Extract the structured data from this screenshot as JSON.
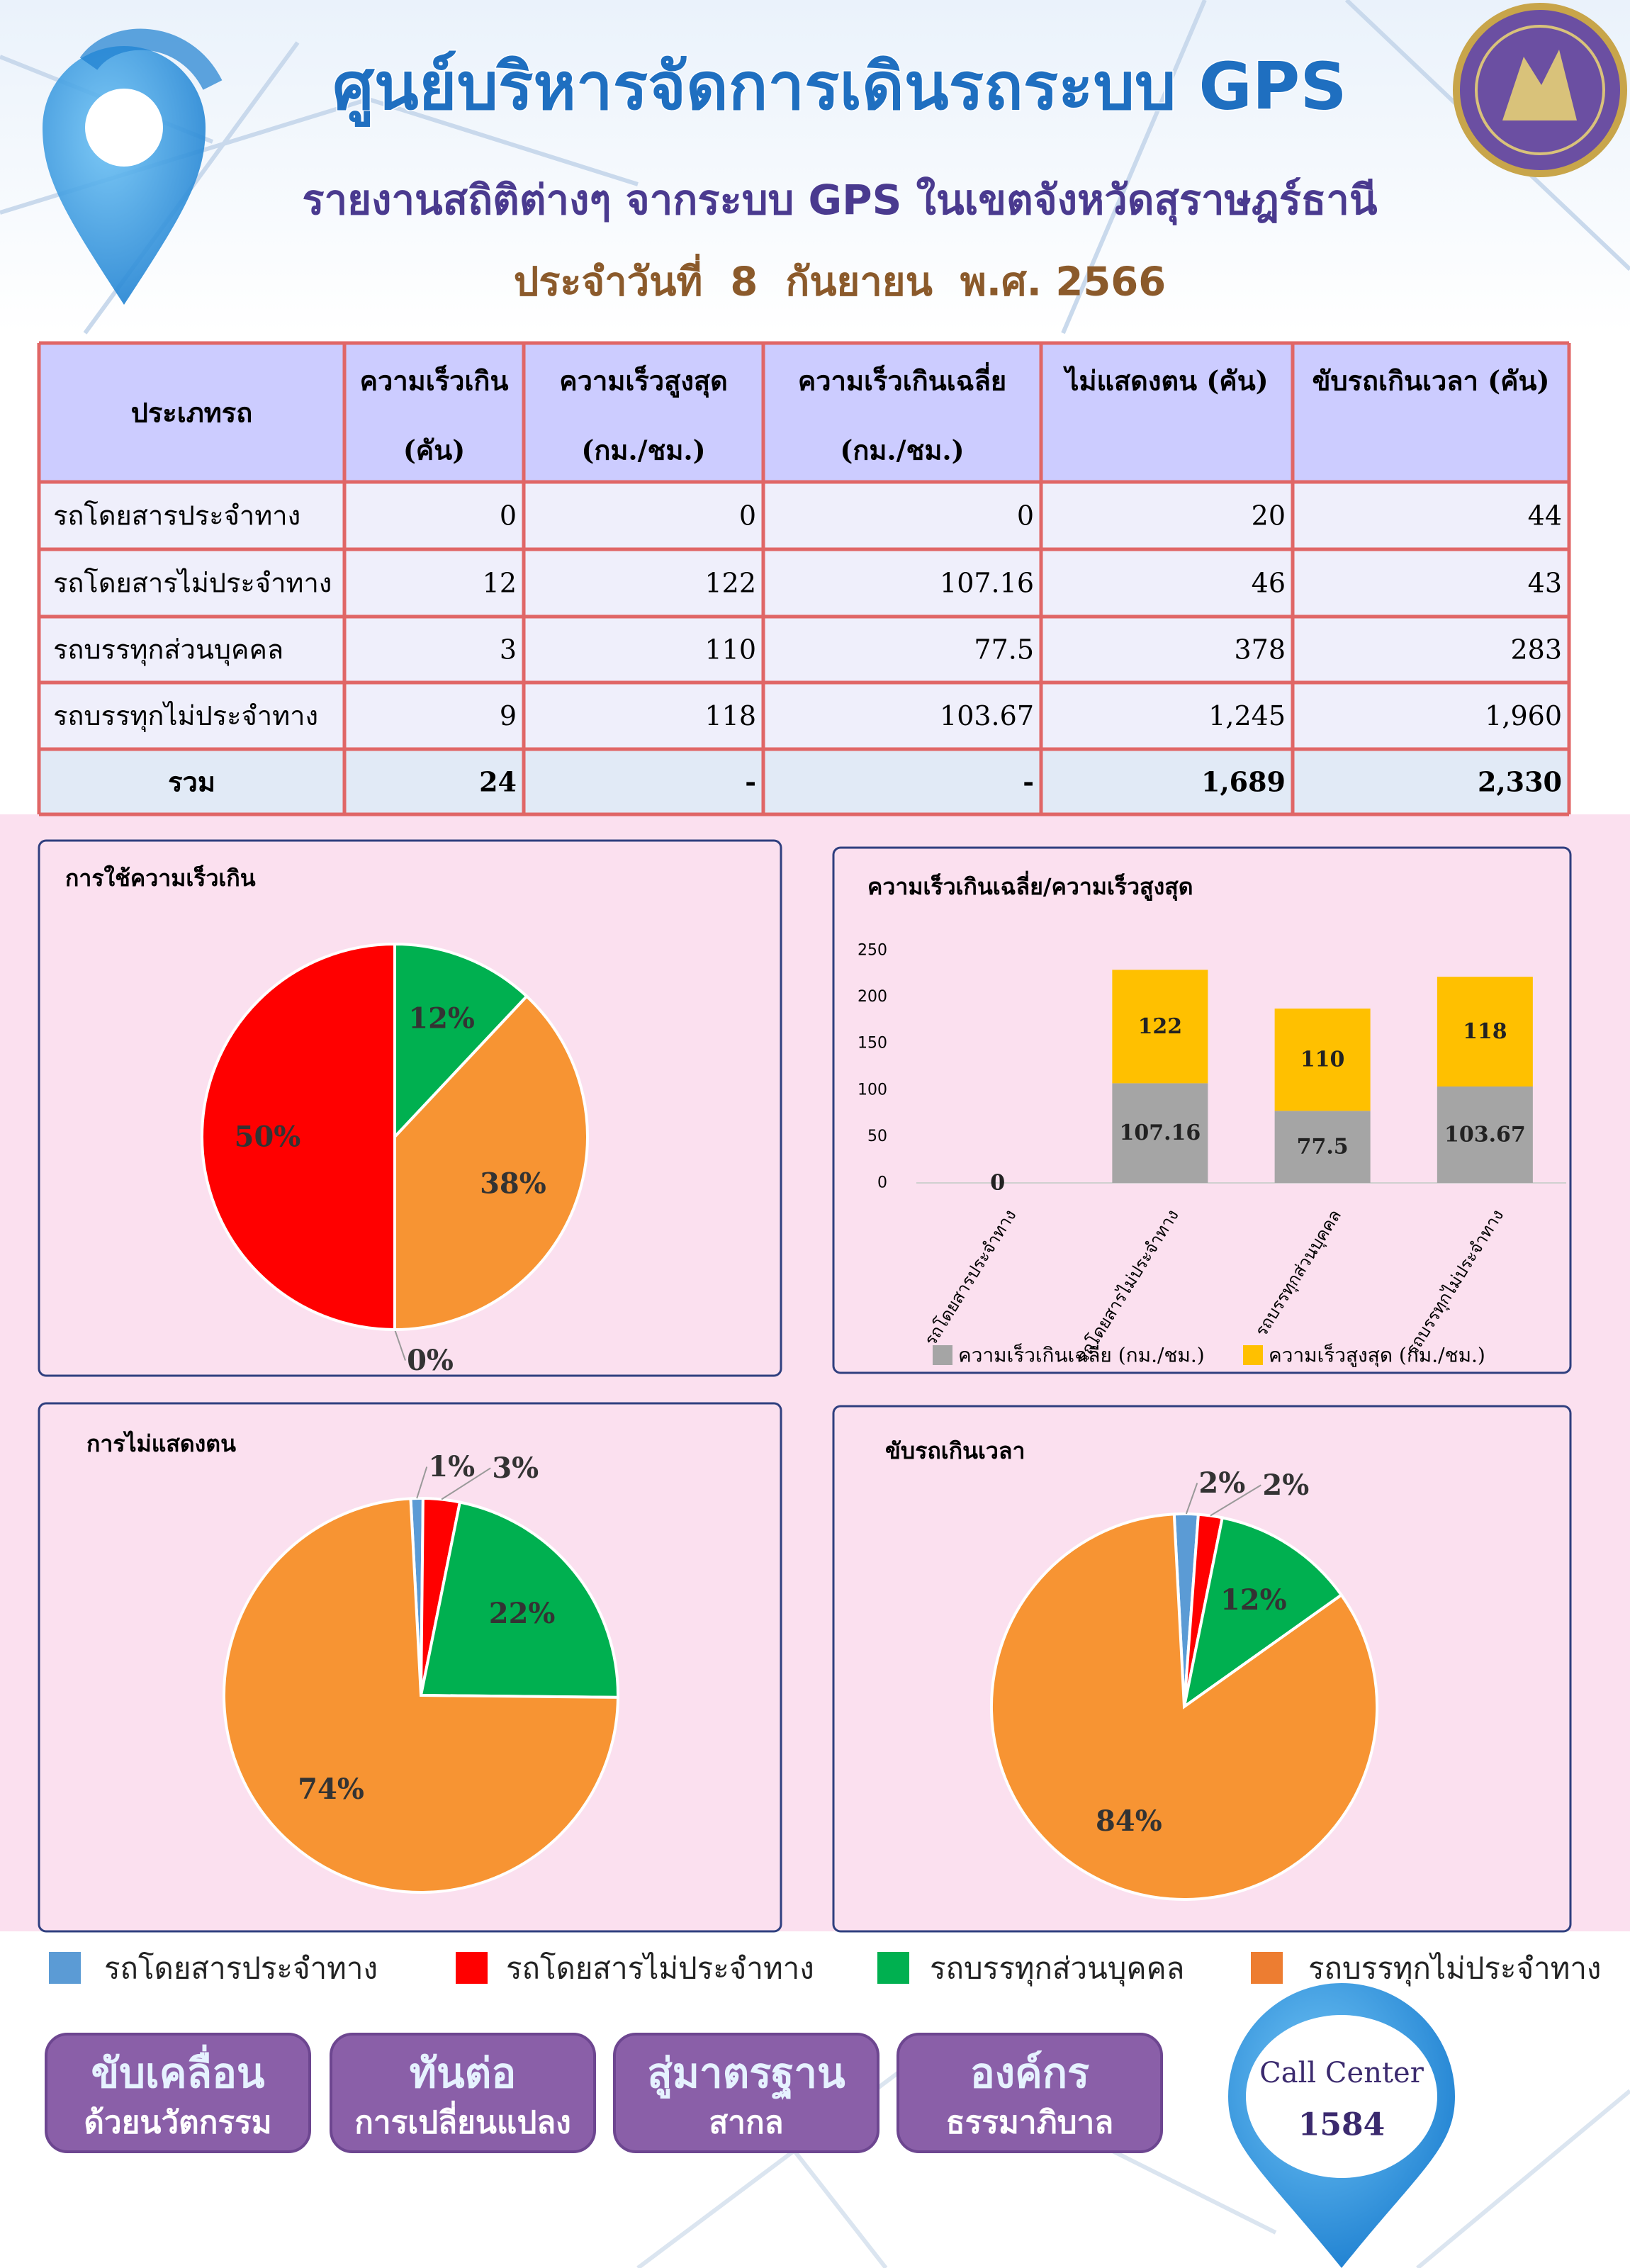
{
  "header": {
    "title": "ศูนย์บริหารจัดการเดินรถระบบ GPS",
    "subtitle": "รายงานสถิติต่างๆ จากระบบ GPS ในเขตจังหวัดสุราษฎร์ธานี",
    "date": "ประจำวันที่  8  กันยายน  พ.ศ. 2566"
  },
  "table": {
    "columns": [
      [
        "ประเภทรถ"
      ],
      [
        "ความเร็วเกิน",
        "(คัน)"
      ],
      [
        "ความเร็วสูงสุด",
        "(กม./ชม.)"
      ],
      [
        "ความเร็วเกินเฉลี่ย",
        "(กม./ชม.)"
      ],
      [
        "ไม่แสดงตน (คัน)"
      ],
      [
        "ขับรถเกินเวลา (คัน)"
      ]
    ],
    "rows": [
      [
        "รถโดยสารประจำทาง",
        "0",
        "0",
        "0",
        "20",
        "44"
      ],
      [
        "รถโดยสารไม่ประจำทาง",
        "12",
        "122",
        "107.16",
        "46",
        "43"
      ],
      [
        "รถบรรทุกส่วนบุคคล",
        "3",
        "110",
        "77.5",
        "378",
        "283"
      ],
      [
        "รถบรรทุกไม่ประจำทาง",
        "9",
        "118",
        "103.67",
        "1,245",
        "1,960"
      ]
    ],
    "total": [
      "รวม",
      "24",
      "-",
      "-",
      "1,689",
      "2,330"
    ]
  },
  "chart_data": [
    {
      "type": "pie",
      "title": "การใช้ความเร็วเกิน",
      "values": [
        0,
        50,
        12,
        38
      ],
      "value_labels": [
        "0%",
        "50%",
        "12%",
        "38%"
      ],
      "colors": [
        "#5b9bd5",
        "#ff0000",
        "#00b050",
        "#f79433"
      ]
    },
    {
      "type": "bar",
      "title": "ความเร็วเกินเฉลี่ย/ความเร็วสูงสุด",
      "stacked": true,
      "categories": [
        "รถโดยสารประจำทาง",
        "รถโดยสารไม่ประจำทาง",
        "รถบรรทุกส่วนบุคคล",
        "รถบรรทุกไม่ประจำทาง"
      ],
      "series": [
        {
          "name": "ความเร็วเกินเฉลี่ย (กม./ชม.)",
          "color": "#a5a5a5",
          "values": [
            0,
            107.16,
            77.5,
            103.67
          ]
        },
        {
          "name": "ความเร็วสูงสุด (กม./ชม.)",
          "color": "#ffc000",
          "values": [
            0,
            122,
            110,
            118
          ]
        }
      ],
      "ylim": [
        0,
        250
      ],
      "yticks": [
        0,
        50,
        100,
        150,
        200,
        250
      ],
      "grid": false
    },
    {
      "type": "pie",
      "title": "การไม่แสดงตน",
      "values": [
        1,
        3,
        22,
        74
      ],
      "value_labels": [
        "1%",
        "3%",
        "22%",
        "74%"
      ],
      "colors": [
        "#5b9bd5",
        "#ff0000",
        "#00b050",
        "#f79433"
      ]
    },
    {
      "type": "pie",
      "title": "ขับรถเกินเวลา",
      "values": [
        2,
        2,
        12,
        84
      ],
      "value_labels": [
        "2%",
        "2%",
        "12%",
        "84%"
      ],
      "colors": [
        "#5b9bd5",
        "#ff0000",
        "#00b050",
        "#f79433"
      ]
    }
  ],
  "legend": [
    {
      "name": "รถโดยสารประจำทาง",
      "color": "#5b9bd5"
    },
    {
      "name": "รถโดยสารไม่ประจำทาง",
      "color": "#ff0000"
    },
    {
      "name": "รถบรรทุกส่วนบุคคล",
      "color": "#00b050"
    },
    {
      "name": "รถบรรทุกไม่ประจำทาง",
      "color": "#ed7d31"
    }
  ],
  "footer": {
    "buttons": [
      [
        "ขับเคลื่อน",
        "ด้วยนวัตกรรม"
      ],
      [
        "ทันต่อ",
        "การเปลี่ยนแปลง"
      ],
      [
        "สู่มาตรฐาน",
        "สากล"
      ],
      [
        "องค์กร",
        "ธรรมาภิบาล"
      ]
    ],
    "call_center": {
      "label": "Call Center",
      "number": "1584"
    }
  }
}
